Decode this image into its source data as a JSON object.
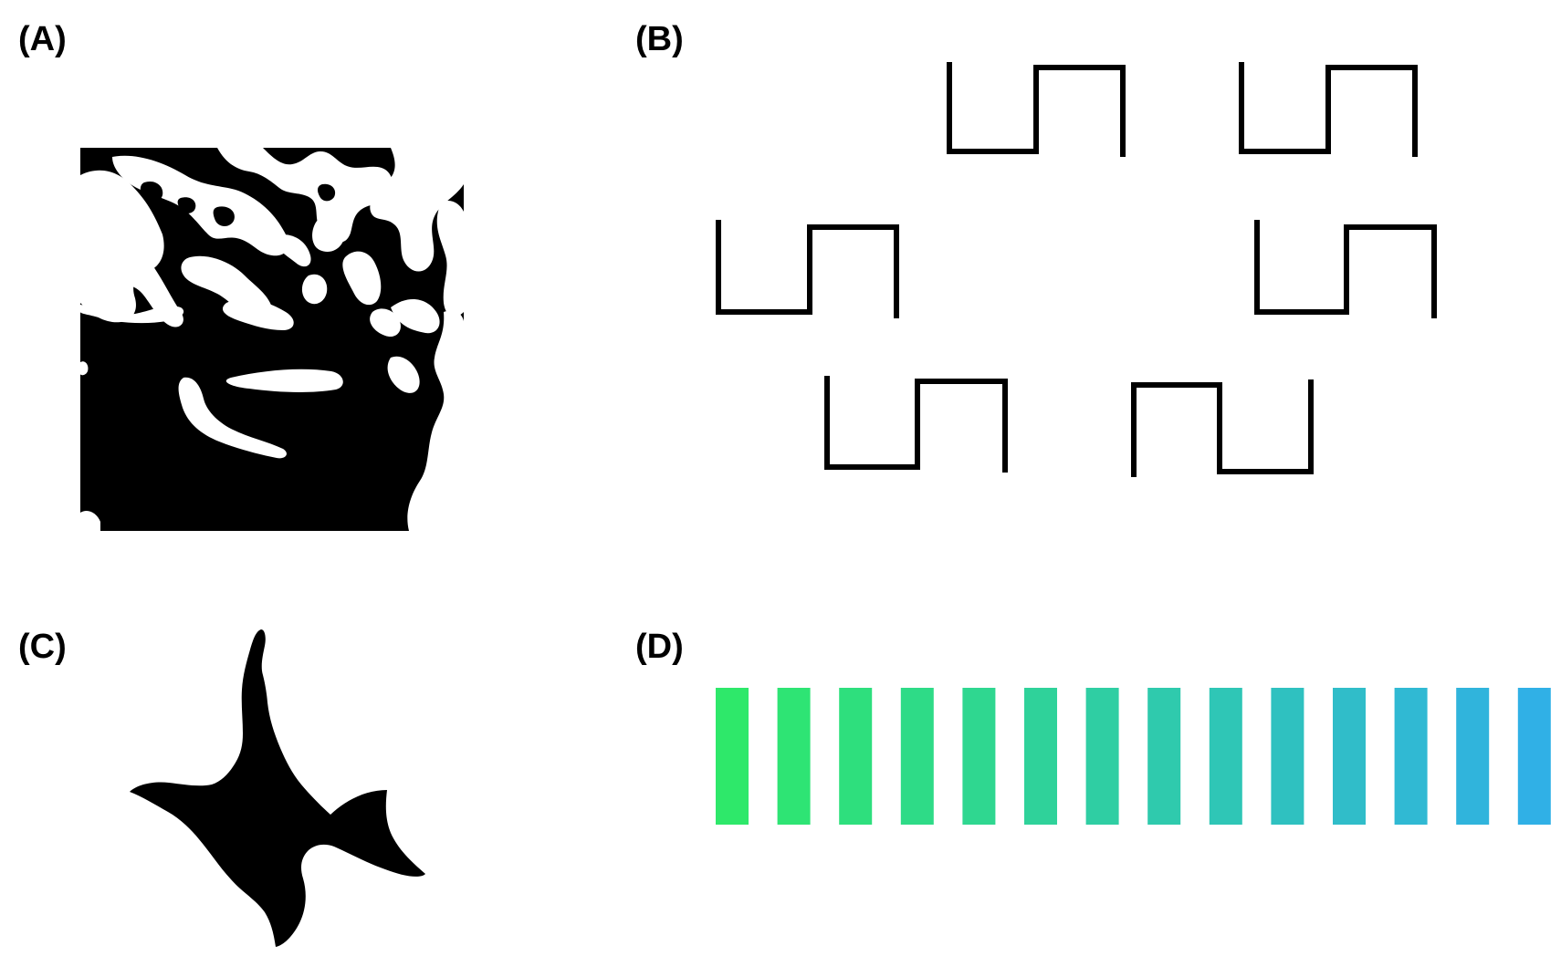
{
  "panels": {
    "a": {
      "label": "(A)"
    },
    "b": {
      "label": "(B)"
    },
    "c": {
      "label": "(C)"
    },
    "d": {
      "label": "(D)"
    }
  },
  "colors": {
    "ink": "#000000",
    "background": "#ffffff",
    "gradient_start": "#2ee86a",
    "gradient_end": "#30b0e6"
  },
  "panel_d": {
    "bar_count": 14
  }
}
